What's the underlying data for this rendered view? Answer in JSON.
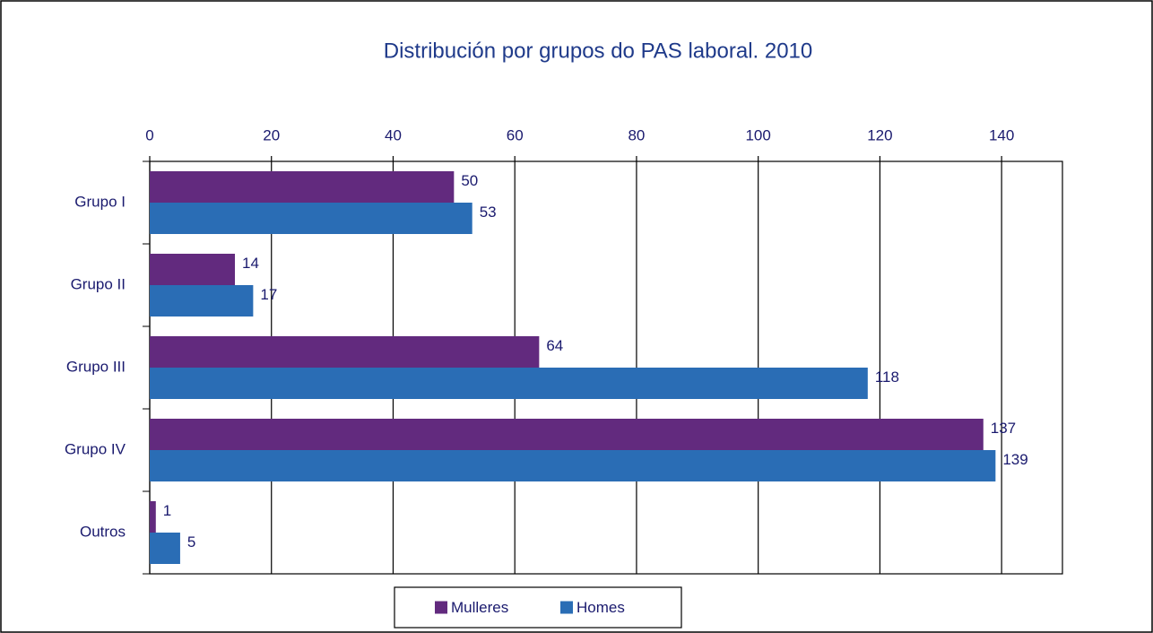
{
  "chart_data": {
    "type": "bar",
    "orientation": "horizontal",
    "title": "Distribución por grupos do PAS laboral. 2010",
    "categories": [
      "Grupo I",
      "Grupo II",
      "Grupo III",
      "Grupo IV",
      "Outros"
    ],
    "series": [
      {
        "name": "Mulleres",
        "color": "#622a7e",
        "values": [
          50,
          14,
          64,
          137,
          1
        ]
      },
      {
        "name": "Homes",
        "color": "#2a6db5",
        "values": [
          53,
          17,
          118,
          139,
          5
        ]
      }
    ],
    "xlim": [
      0,
      150
    ],
    "xticks": [
      0,
      20,
      40,
      60,
      80,
      100,
      120,
      140
    ],
    "grid": true,
    "legend": "bottom"
  }
}
